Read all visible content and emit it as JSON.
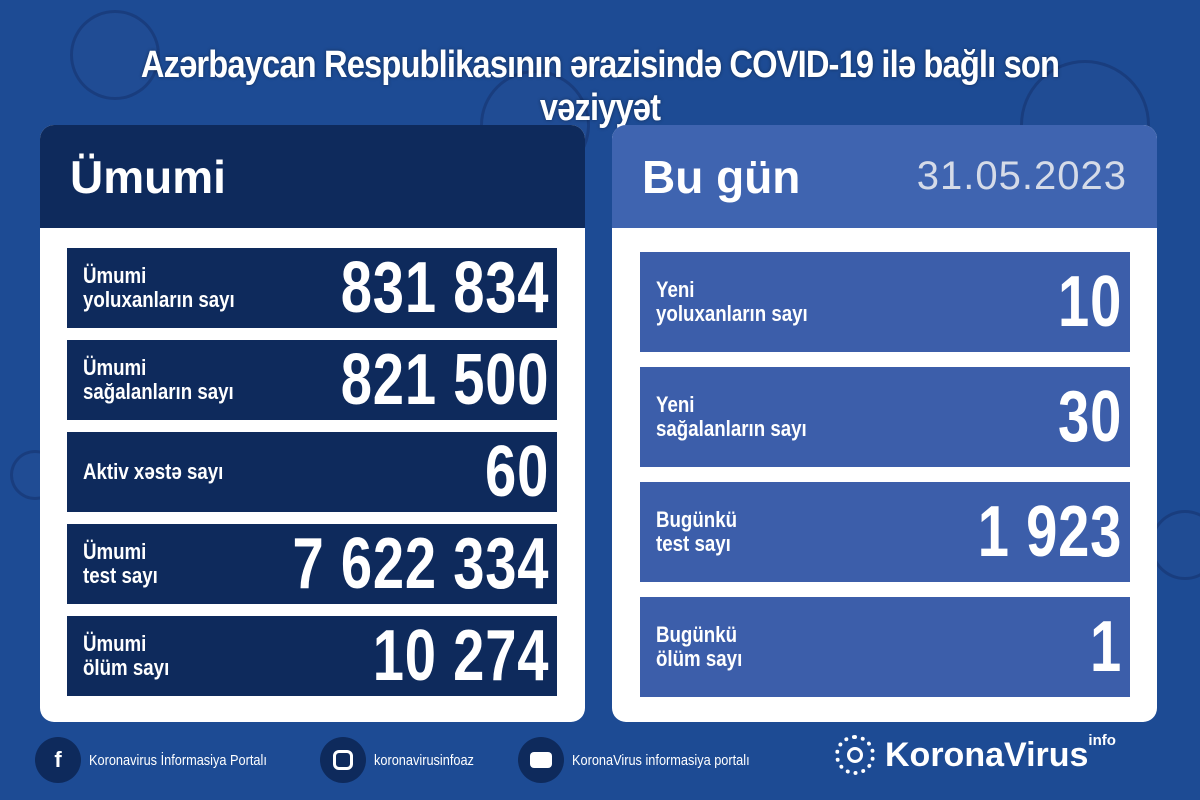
{
  "title": "Azərbaycan Respublikasının ərazisində COVID-19 ilə bağlı son vəziyyət",
  "colors": {
    "background": "#1d4b94",
    "dark_panel": "#0e2a5c",
    "light_panel": "#3f64b0"
  },
  "total": {
    "heading": "Ümumi",
    "rows": [
      {
        "label1": "Ümumi",
        "label2": "yoluxanların sayı",
        "value": "831 834"
      },
      {
        "label1": "Ümumi",
        "label2": "sağalanların sayı",
        "value": "821 500"
      },
      {
        "label1": "Aktiv xəstə sayı",
        "label2": "",
        "value": "60"
      },
      {
        "label1": "Ümumi",
        "label2": "test sayı",
        "value": "7 622 334"
      },
      {
        "label1": "Ümumi",
        "label2": "ölüm sayı",
        "value": "10 274"
      }
    ]
  },
  "today": {
    "heading": "Bu gün",
    "date": "31.05.2023",
    "rows": [
      {
        "label1": "Yeni",
        "label2": "yoluxanların sayı",
        "value": "10"
      },
      {
        "label1": "Yeni",
        "label2": "sağalanların sayı",
        "value": "30"
      },
      {
        "label1": "Bugünkü",
        "label2": "test sayı",
        "value": "1 923"
      },
      {
        "label1": "Bugünkü",
        "label2": "ölüm sayı",
        "value": "1"
      }
    ]
  },
  "footer": {
    "facebook": "Koronavirus İnformasiya Portalı",
    "instagram": "koronavirusinfoaz",
    "youtube": "KoronaVirus informasiya portalı",
    "logo": "KoronaVirus",
    "logo_sup": "info"
  }
}
